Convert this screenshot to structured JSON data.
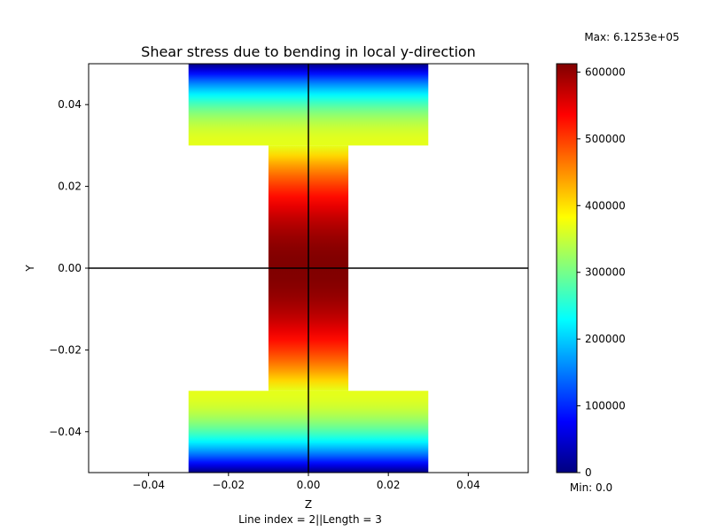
{
  "chart_data": {
    "type": "heatmap",
    "title": "Shear stress due to bending in local y-direction",
    "xlabel": "Z",
    "ylabel": "Y",
    "caption": "Line index = 2||Length = 3",
    "xlim": [
      -0.055,
      0.055
    ],
    "ylim": [
      -0.05,
      0.05
    ],
    "x_ticks": [
      -0.04,
      -0.02,
      0.0,
      0.02,
      0.04
    ],
    "x_tick_labels": [
      "−0.04",
      "−0.02",
      "0.00",
      "0.02",
      "0.04"
    ],
    "y_ticks": [
      -0.04,
      -0.02,
      0.0,
      0.02,
      0.04
    ],
    "y_tick_labels": [
      "−0.04",
      "−0.02",
      "0.00",
      "0.02",
      "0.04"
    ],
    "grid": false,
    "colormap": "jet",
    "cross_section": {
      "shape": "I-beam",
      "flange_width": 0.06,
      "web_width": 0.02,
      "height": 0.1,
      "flange_thickness": 0.02
    },
    "reference_lines": [
      {
        "axis": "horizontal",
        "value": 0.0
      },
      {
        "axis": "vertical",
        "value": 0.0
      }
    ],
    "regions": [
      {
        "name": "top-flange",
        "z_range": [
          -0.03,
          0.03
        ],
        "y_range": [
          0.03,
          0.05
        ],
        "profile": [
          {
            "y": 0.05,
            "value": 0
          },
          {
            "y": 0.03,
            "value": 367500
          }
        ]
      },
      {
        "name": "web",
        "z_range": [
          -0.01,
          0.01
        ],
        "y_range": [
          -0.03,
          0.03
        ],
        "profile": [
          {
            "y": 0.03,
            "value": 367500
          },
          {
            "y": 0.0,
            "value": 612530
          },
          {
            "y": -0.03,
            "value": 367500
          }
        ]
      },
      {
        "name": "bottom-flange",
        "z_range": [
          -0.03,
          0.03
        ],
        "y_range": [
          -0.05,
          -0.03
        ],
        "profile": [
          {
            "y": -0.03,
            "value": 367500
          },
          {
            "y": -0.05,
            "value": 0
          }
        ]
      }
    ],
    "colorbar": {
      "vmin": 0,
      "vmax": 612530,
      "ticks": [
        0,
        100000,
        200000,
        300000,
        400000,
        500000,
        600000
      ],
      "tick_labels": [
        "0",
        "100000",
        "200000",
        "300000",
        "400000",
        "500000",
        "600000"
      ],
      "max_label": "Max: 6.1253e+05",
      "min_label": "Min: 0.0"
    }
  }
}
